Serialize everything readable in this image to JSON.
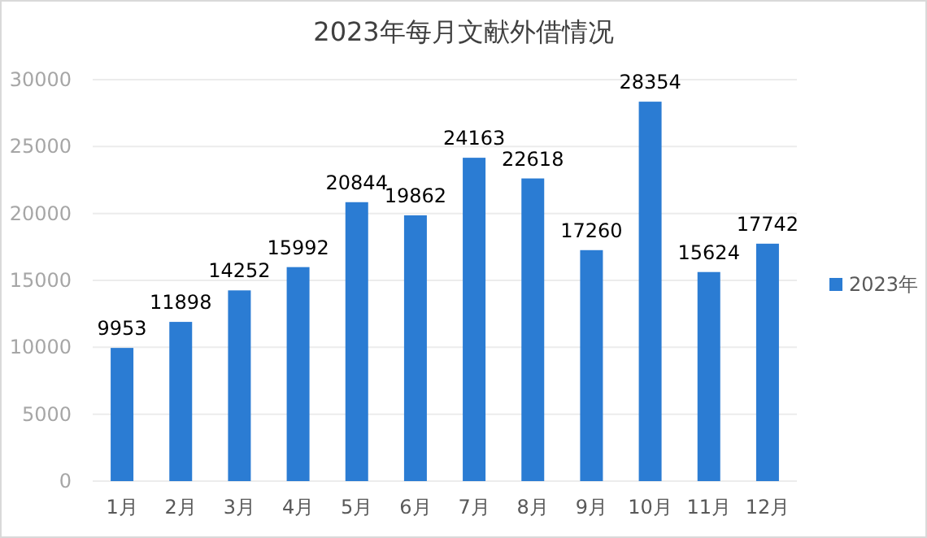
{
  "chart_data": {
    "type": "bar",
    "title": "2023年每月文献外借情况",
    "categories": [
      "1月",
      "2月",
      "3月",
      "4月",
      "5月",
      "6月",
      "7月",
      "8月",
      "9月",
      "10月",
      "11月",
      "12月"
    ],
    "series": [
      {
        "name": "2023年",
        "color": "#2b7cd3",
        "values": [
          9953,
          11898,
          14252,
          15992,
          20844,
          19862,
          24163,
          22618,
          17260,
          28354,
          15624,
          17742
        ]
      }
    ],
    "ylim": [
      0,
      30000
    ],
    "yticks": [
      0,
      5000,
      10000,
      15000,
      20000,
      25000,
      30000
    ],
    "grid": "y",
    "legend": "right",
    "data_labels": true
  }
}
